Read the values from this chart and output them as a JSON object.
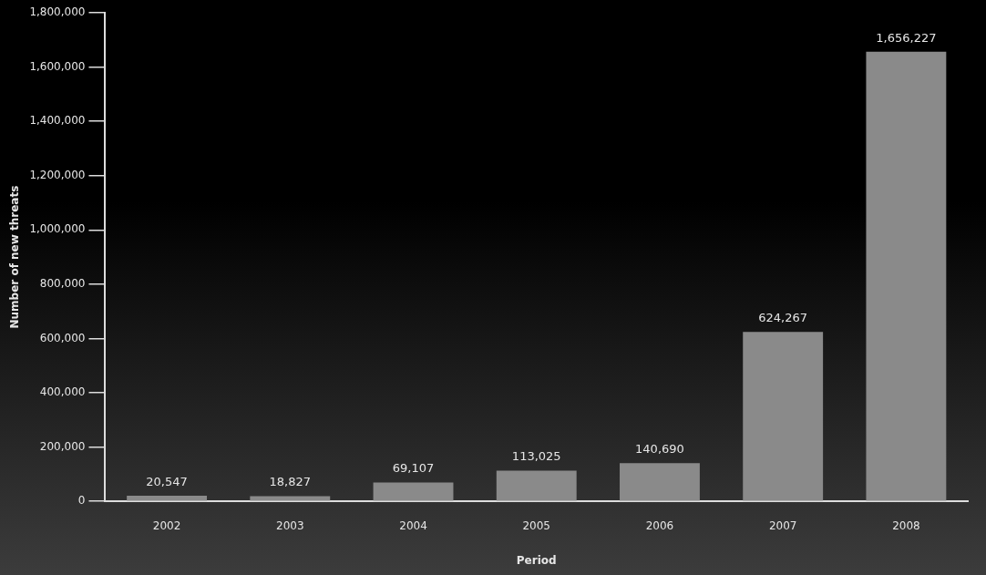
{
  "chart_data": {
    "type": "bar",
    "xlabel": "Period",
    "ylabel": "Number of new threats",
    "categories": [
      "2002",
      "2003",
      "2004",
      "2005",
      "2006",
      "2007",
      "2008"
    ],
    "values": [
      20547,
      18827,
      69107,
      113025,
      140690,
      624267,
      1656227
    ],
    "value_labels": [
      "20,547",
      "18,827",
      "69,107",
      "113,025",
      "140,690",
      "624,267",
      "1,656,227"
    ],
    "color": "#8a8a8a",
    "ylim": [
      0,
      1800000
    ],
    "yticks": [
      0,
      {
        "value": 200000,
        "label": "200,000"
      },
      {
        "value": 400000,
        "label": "400,000"
      },
      {
        "value": 600000,
        "label": "600,000"
      },
      {
        "value": 800000,
        "label": "800,000"
      },
      {
        "value": 1000000,
        "label": "1,000,000"
      },
      {
        "value": 1200000,
        "label": "1,200,000"
      },
      {
        "value": 1400000,
        "label": "1,400,000"
      },
      {
        "value": 1600000,
        "label": "1,600,000"
      },
      {
        "value": 1800000,
        "label": "1,800,000"
      }
    ],
    "grid": false
  }
}
